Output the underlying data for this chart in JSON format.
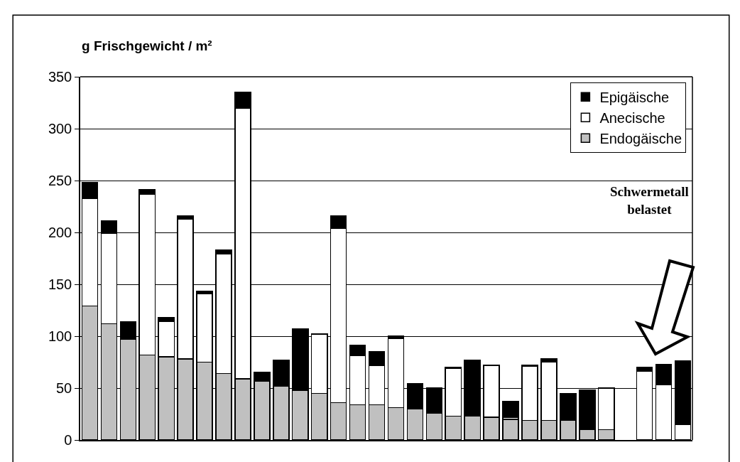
{
  "chart_data": {
    "type": "bar",
    "stacked": true,
    "ylabel": "g Frischgewicht / m²",
    "categories": [
      null,
      null,
      null,
      null,
      null,
      null,
      null,
      null,
      null,
      null,
      null,
      null,
      null,
      null,
      null,
      null,
      null,
      null,
      null,
      null,
      null,
      null,
      null,
      null,
      null,
      null,
      null,
      null,
      null,
      null,
      null,
      null
    ],
    "series": [
      {
        "name": "Endogäische",
        "color": "#c0c0c0",
        "values": [
          129,
          112,
          97,
          82,
          80,
          78,
          75,
          64,
          59,
          57,
          52,
          48,
          45,
          36,
          34,
          34,
          31,
          30,
          26,
          23,
          23,
          22,
          20,
          19,
          19,
          19,
          10,
          10,
          null,
          0,
          0,
          0
        ]
      },
      {
        "name": "Anecische",
        "color": "#ffffff",
        "values": [
          104,
          87,
          0,
          155,
          34,
          135,
          66,
          115,
          261,
          0,
          0,
          0,
          57,
          168,
          47,
          38,
          67,
          0,
          0,
          46,
          0,
          50,
          2,
          52,
          56,
          0,
          0,
          40,
          null,
          66,
          53,
          15
        ]
      },
      {
        "name": "Epigäische",
        "color": "#000000",
        "values": [
          15,
          12,
          17,
          4,
          4,
          3,
          2,
          4,
          15,
          8,
          25,
          59,
          0,
          12,
          10,
          13,
          2,
          24,
          24,
          1,
          54,
          0,
          15,
          1,
          3,
          26,
          38,
          0,
          null,
          4,
          20,
          61
        ]
      }
    ],
    "ylim": [
      0,
      350
    ],
    "yticks": [
      0,
      50,
      100,
      150,
      200,
      250,
      300,
      350
    ],
    "grid": "y",
    "legend": "top right",
    "tick_labels": "y",
    "annotations": [
      "Schwermetall\nbelastet"
    ]
  }
}
